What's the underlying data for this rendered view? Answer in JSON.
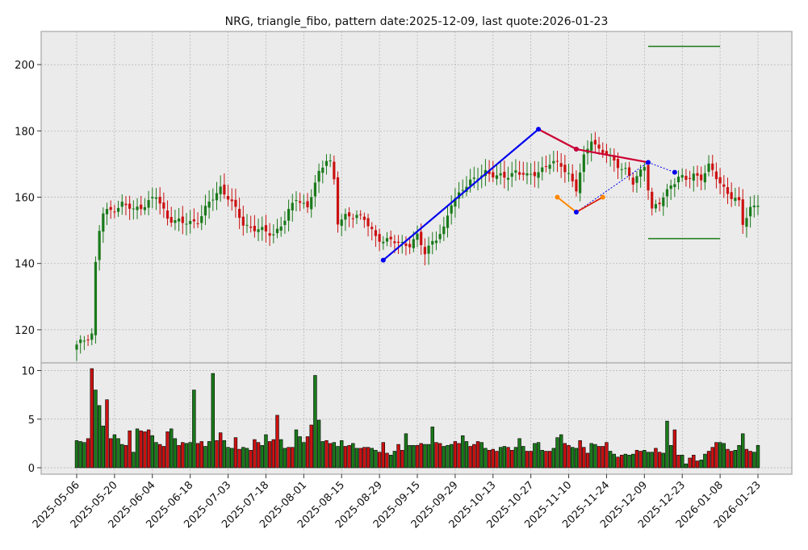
{
  "chart_data": {
    "type": "candlestick",
    "title": "NRG, triangle_fibo, pattern date:2025-12-09, last quote:2026-01-23",
    "colors": {
      "background": "#ebebeb",
      "grid": "#b0b0b0",
      "up": "#1a7a1a",
      "down": "#cc1111",
      "blue_line": "#0000ee",
      "red_line": "#cc0033",
      "orange_line": "#ff8800",
      "green_level": "#1a7a1a"
    },
    "price_axis": {
      "ylim": [
        110,
        210
      ],
      "ticks": [
        120,
        140,
        160,
        180,
        200
      ]
    },
    "volume_axis": {
      "ylim": [
        0,
        10.5
      ],
      "ticks": [
        0,
        5,
        10
      ]
    },
    "x_tick_labels": [
      "2025-05-06",
      "2025-05-20",
      "2025-06-04",
      "2025-06-18",
      "2025-07-03",
      "2025-07-18",
      "2025-08-01",
      "2025-08-15",
      "2025-08-29",
      "2025-09-15",
      "2025-09-29",
      "2025-10-13",
      "2025-10-27",
      "2025-11-10",
      "2025-11-24",
      "2025-12-09",
      "2025-12-23",
      "2026-01-08",
      "2026-01-23"
    ],
    "grid": true,
    "close_anchors": [
      [
        0,
        115
      ],
      [
        4,
        119
      ],
      [
        5,
        140
      ],
      [
        6,
        150
      ],
      [
        7,
        155
      ],
      [
        9,
        156
      ],
      [
        12,
        158
      ],
      [
        15,
        156
      ],
      [
        18,
        158
      ],
      [
        21,
        160
      ],
      [
        24,
        154
      ],
      [
        28,
        152
      ],
      [
        32,
        153
      ],
      [
        35,
        158
      ],
      [
        38,
        163
      ],
      [
        40,
        160
      ],
      [
        44,
        152
      ],
      [
        48,
        150
      ],
      [
        52,
        149
      ],
      [
        55,
        153
      ],
      [
        58,
        160
      ],
      [
        61,
        157
      ],
      [
        64,
        167
      ],
      [
        66,
        172
      ],
      [
        67,
        171
      ],
      [
        68,
        165
      ],
      [
        69,
        152
      ],
      [
        71,
        154
      ],
      [
        74,
        155
      ],
      [
        76,
        153
      ],
      [
        79,
        148
      ],
      [
        82,
        147
      ],
      [
        85,
        146
      ],
      [
        88,
        146
      ],
      [
        90,
        148
      ],
      [
        92,
        143
      ],
      [
        94,
        147
      ],
      [
        97,
        150
      ],
      [
        99,
        158
      ],
      [
        102,
        163
      ],
      [
        105,
        165
      ],
      [
        108,
        168
      ],
      [
        111,
        166
      ],
      [
        113,
        166
      ],
      [
        116,
        168
      ],
      [
        119,
        166
      ],
      [
        122,
        168
      ],
      [
        125,
        170
      ],
      [
        128,
        170
      ],
      [
        130,
        167
      ],
      [
        132,
        162
      ],
      [
        134,
        172
      ],
      [
        136,
        178
      ],
      [
        138,
        174
      ],
      [
        141,
        172
      ],
      [
        143,
        170
      ],
      [
        145,
        168
      ],
      [
        147,
        164
      ],
      [
        150,
        170
      ],
      [
        152,
        156
      ],
      [
        154,
        158
      ],
      [
        157,
        164
      ],
      [
        159,
        166
      ],
      [
        161,
        165
      ],
      [
        163,
        167
      ],
      [
        165,
        166
      ],
      [
        167,
        169
      ],
      [
        169,
        166
      ],
      [
        171,
        163
      ],
      [
        173,
        160
      ],
      [
        175,
        158
      ],
      [
        176,
        152
      ],
      [
        178,
        157
      ],
      [
        180,
        158
      ],
      [
        183,
        160
      ],
      [
        186,
        162
      ],
      [
        188,
        166
      ],
      [
        190,
        160
      ],
      [
        191,
        150
      ],
      [
        192,
        148
      ],
      [
        194,
        150
      ],
      [
        197,
        151
      ],
      [
        200,
        150
      ]
    ],
    "volume_anchors": [
      [
        0,
        2.8
      ],
      [
        1,
        2.7
      ],
      [
        2,
        2.6
      ],
      [
        3,
        3.0
      ],
      [
        4,
        10.2
      ],
      [
        5,
        8.0
      ],
      [
        6,
        6.4
      ],
      [
        7,
        4.3
      ],
      [
        8,
        7.0
      ],
      [
        9,
        3.0
      ],
      [
        10,
        3.4
      ],
      [
        11,
        3.0
      ],
      [
        12,
        2.4
      ],
      [
        13,
        2.3
      ],
      [
        14,
        3.8
      ],
      [
        15,
        1.6
      ],
      [
        16,
        4.0
      ],
      [
        17,
        3.8
      ],
      [
        18,
        3.7
      ],
      [
        19,
        3.9
      ],
      [
        20,
        3.3
      ],
      [
        21,
        2.6
      ],
      [
        22,
        2.4
      ],
      [
        23,
        2.2
      ],
      [
        24,
        3.7
      ],
      [
        25,
        4.0
      ],
      [
        26,
        3.0
      ],
      [
        27,
        2.3
      ],
      [
        28,
        2.6
      ],
      [
        29,
        2.5
      ],
      [
        30,
        2.6
      ],
      [
        31,
        8.0
      ],
      [
        32,
        2.5
      ],
      [
        33,
        2.7
      ],
      [
        34,
        2.2
      ],
      [
        35,
        2.7
      ],
      [
        36,
        9.7
      ],
      [
        37,
        2.8
      ],
      [
        38,
        3.6
      ],
      [
        39,
        2.8
      ],
      [
        40,
        2.1
      ],
      [
        41,
        2.0
      ],
      [
        42,
        3.1
      ],
      [
        43,
        1.9
      ],
      [
        44,
        2.1
      ],
      [
        45,
        2.0
      ],
      [
        46,
        1.8
      ],
      [
        47,
        2.9
      ],
      [
        48,
        2.6
      ],
      [
        49,
        2.3
      ],
      [
        50,
        3.4
      ],
      [
        51,
        2.7
      ],
      [
        52,
        2.9
      ],
      [
        53,
        5.4
      ],
      [
        54,
        2.9
      ],
      [
        55,
        2.0
      ],
      [
        56,
        2.1
      ],
      [
        57,
        2.1
      ],
      [
        58,
        3.9
      ],
      [
        59,
        3.2
      ],
      [
        60,
        2.6
      ],
      [
        61,
        3.2
      ],
      [
        62,
        4.4
      ],
      [
        63,
        9.5
      ],
      [
        64,
        4.9
      ],
      [
        65,
        2.7
      ],
      [
        66,
        2.8
      ],
      [
        67,
        2.5
      ],
      [
        68,
        2.6
      ],
      [
        69,
        2.2
      ],
      [
        70,
        2.8
      ],
      [
        71,
        2.2
      ],
      [
        72,
        2.3
      ],
      [
        73,
        2.5
      ],
      [
        74,
        2.0
      ],
      [
        75,
        2.0
      ],
      [
        76,
        2.1
      ],
      [
        77,
        2.1
      ],
      [
        78,
        2.0
      ],
      [
        79,
        1.8
      ],
      [
        80,
        1.6
      ],
      [
        81,
        2.6
      ],
      [
        82,
        1.5
      ],
      [
        83,
        1.3
      ],
      [
        84,
        1.7
      ],
      [
        85,
        2.4
      ],
      [
        86,
        1.8
      ],
      [
        87,
        3.5
      ],
      [
        88,
        2.3
      ],
      [
        89,
        2.3
      ],
      [
        90,
        2.3
      ],
      [
        91,
        2.5
      ],
      [
        92,
        2.4
      ],
      [
        93,
        2.4
      ],
      [
        94,
        4.2
      ],
      [
        95,
        2.6
      ],
      [
        96,
        2.5
      ],
      [
        97,
        2.2
      ],
      [
        98,
        2.3
      ],
      [
        99,
        2.4
      ],
      [
        100,
        2.7
      ],
      [
        101,
        2.5
      ],
      [
        102,
        3.3
      ],
      [
        103,
        2.7
      ],
      [
        104,
        2.2
      ],
      [
        105,
        2.4
      ],
      [
        106,
        2.7
      ],
      [
        107,
        2.6
      ],
      [
        108,
        2.0
      ],
      [
        109,
        1.8
      ],
      [
        110,
        1.9
      ],
      [
        111,
        1.7
      ],
      [
        112,
        2.1
      ],
      [
        113,
        2.2
      ],
      [
        114,
        2.1
      ],
      [
        115,
        1.8
      ],
      [
        116,
        2.1
      ],
      [
        117,
        3.0
      ],
      [
        118,
        2.2
      ],
      [
        119,
        1.7
      ],
      [
        120,
        1.7
      ],
      [
        121,
        2.5
      ],
      [
        122,
        2.6
      ],
      [
        123,
        1.8
      ],
      [
        124,
        1.7
      ],
      [
        125,
        1.7
      ],
      [
        126,
        2.0
      ],
      [
        127,
        3.1
      ],
      [
        128,
        3.4
      ],
      [
        129,
        2.5
      ],
      [
        130,
        2.3
      ],
      [
        131,
        2.1
      ],
      [
        132,
        2.0
      ],
      [
        133,
        2.8
      ],
      [
        134,
        2.1
      ],
      [
        135,
        1.5
      ],
      [
        136,
        2.5
      ],
      [
        137,
        2.4
      ],
      [
        138,
        2.2
      ],
      [
        139,
        2.2
      ],
      [
        140,
        2.6
      ],
      [
        141,
        1.7
      ],
      [
        142,
        1.4
      ],
      [
        143,
        1.1
      ],
      [
        144,
        1.3
      ],
      [
        145,
        1.4
      ],
      [
        146,
        1.3
      ],
      [
        147,
        1.4
      ],
      [
        148,
        1.8
      ],
      [
        149,
        1.7
      ],
      [
        150,
        1.8
      ],
      [
        151,
        1.6
      ],
      [
        152,
        1.6
      ],
      [
        153,
        2.0
      ],
      [
        154,
        1.6
      ],
      [
        155,
        1.5
      ],
      [
        156,
        4.8
      ],
      [
        157,
        2.3
      ],
      [
        158,
        3.9
      ],
      [
        159,
        1.3
      ],
      [
        160,
        1.3
      ],
      [
        161,
        0.4
      ],
      [
        162,
        1.0
      ],
      [
        163,
        1.3
      ],
      [
        164,
        0.7
      ],
      [
        165,
        0.8
      ],
      [
        166,
        1.4
      ],
      [
        167,
        1.7
      ],
      [
        168,
        2.1
      ],
      [
        169,
        2.6
      ],
      [
        170,
        2.6
      ],
      [
        171,
        2.5
      ],
      [
        172,
        1.9
      ],
      [
        173,
        1.7
      ],
      [
        174,
        1.8
      ],
      [
        175,
        2.3
      ],
      [
        176,
        3.5
      ],
      [
        177,
        1.9
      ],
      [
        178,
        1.7
      ],
      [
        179,
        1.6
      ],
      [
        180,
        2.3
      ]
    ],
    "pattern_points": {
      "blue_line": [
        [
          81,
          141
        ],
        [
          122,
          180.5
        ]
      ],
      "red_line": [
        [
          122,
          180.5
        ],
        [
          132,
          174.5
        ],
        [
          151,
          170.5
        ]
      ],
      "blue_dotted": [
        [
          151,
          170.5
        ],
        [
          158,
          167.5
        ]
      ],
      "orange_line": [
        [
          127,
          160
        ],
        [
          132,
          155.5
        ],
        [
          139,
          160
        ]
      ],
      "blue_dotted_2": [
        [
          132,
          155.5
        ],
        [
          151,
          170.5
        ]
      ],
      "vertices": [
        [
          81,
          141
        ],
        [
          122,
          180.5
        ],
        [
          132,
          174.5
        ],
        [
          132,
          155.5
        ],
        [
          151,
          170.5
        ],
        [
          158,
          167.5
        ]
      ],
      "orange_vertices": [
        [
          127,
          160
        ],
        [
          139,
          160
        ]
      ]
    },
    "levels": [
      {
        "x": [
          151,
          170
        ],
        "y": 205.5
      },
      {
        "x": [
          151,
          170
        ],
        "y": 147.5
      }
    ],
    "x_count": 181
  }
}
